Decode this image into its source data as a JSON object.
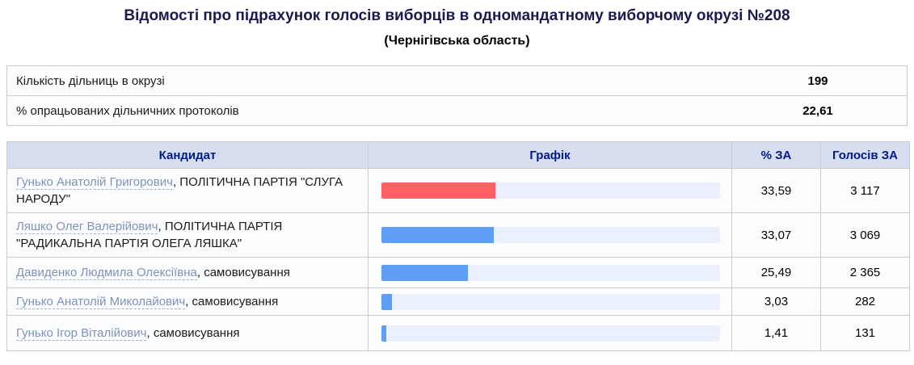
{
  "title": {
    "main": "Відомості про підрахунок голосів виборців в одномандатному виборчому окрузі №208",
    "subtitle": "(Чернігівська область)"
  },
  "summary": {
    "rows": [
      {
        "label": "Кількість дільниць в окрузі",
        "value": "199"
      },
      {
        "label": "% опрацьованих дільничних протоколів",
        "value": "22,61"
      }
    ]
  },
  "results_table": {
    "headers": {
      "candidate": "Кандидат",
      "chart": "Графік",
      "percent": "% ЗА",
      "votes": "Голосів ЗА"
    },
    "rows": [
      {
        "name": "Гунько Анатолій Григорович",
        "affiliation": ", ПОЛІТИЧНА ПАРТІЯ \"СЛУГА НАРОДУ\"",
        "percent": "33,59",
        "percent_value": 33.59,
        "votes": "3 117",
        "bar_color": "#fd6164"
      },
      {
        "name": "Ляшко Олег Валерійович",
        "affiliation": ", ПОЛІТИЧНА ПАРТІЯ \"РАДИКАЛЬНА ПАРТІЯ ОЛЕГА ЛЯШКА\"",
        "percent": "33,07",
        "percent_value": 33.07,
        "votes": "3 069",
        "bar_color": "#609df6"
      },
      {
        "name": "Давиденко Людмила Олексіївна",
        "affiliation": ", самовисування",
        "percent": "25,49",
        "percent_value": 25.49,
        "votes": "2 365",
        "bar_color": "#609df6"
      },
      {
        "name": "Гунько Анатолій Миколайович",
        "affiliation": ", самовисування",
        "percent": "3,03",
        "percent_value": 3.03,
        "votes": "282",
        "bar_color": "#609df6"
      },
      {
        "name": "Гунько Ігор Віталійович",
        "affiliation": ", самовисування",
        "percent": "1,41",
        "percent_value": 1.41,
        "votes": "131",
        "bar_color": "#609df6"
      }
    ]
  },
  "colors": {
    "header_bg": "#d6def0",
    "header_text": "#001a8c",
    "row_bg": "#fbfdfe",
    "border": "#cbcbcb",
    "track": "#eaf0fd",
    "bar_red": "#fd6164",
    "bar_blue": "#609df6",
    "link": "#7e93b9"
  },
  "chart_data": {
    "type": "bar",
    "orientation": "horizontal",
    "categories": [
      "Гунько Анатолій Григорович",
      "Ляшко Олег Валерійович",
      "Давиденко Людмила Олексіївна",
      "Гунько Анатолій Миколайович",
      "Гунько Ігор Віталійович"
    ],
    "values": [
      33.59,
      33.07,
      25.49,
      3.03,
      1.41
    ],
    "votes": [
      3117,
      3069,
      2365,
      282,
      131
    ],
    "xlim": [
      0,
      100
    ],
    "title": "Графік"
  }
}
